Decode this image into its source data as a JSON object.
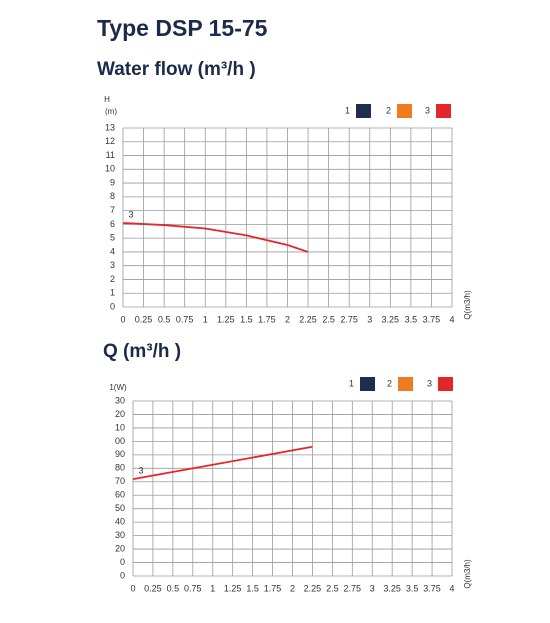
{
  "header": {
    "title": "Type DSP 15-75"
  },
  "chart_data": [
    {
      "type": "line",
      "title": "Water flow (m³/h )",
      "y_label": "H",
      "y_unit": "(m)",
      "x_label": "Q(m3/h)",
      "xlim": [
        0,
        4
      ],
      "xticks": [
        0,
        0.25,
        0.5,
        0.75,
        1,
        1.25,
        1.5,
        1.75,
        2,
        2.25,
        2.5,
        2.75,
        3,
        3.25,
        3.5,
        3.75,
        4
      ],
      "ylim": [
        0,
        13
      ],
      "yticks": [
        0,
        1,
        2,
        3,
        4,
        5,
        6,
        7,
        8,
        9,
        10,
        11,
        12,
        13
      ],
      "grid": true,
      "series": [
        {
          "name": "1",
          "color": "#1f2d4f"
        },
        {
          "name": "2",
          "color": "#f07c22"
        },
        {
          "name": "3",
          "color": "#e3262b",
          "x": [
            0,
            0.5,
            1,
            1.5,
            2,
            2.25
          ],
          "values": [
            6.1,
            5.95,
            5.7,
            5.2,
            4.5,
            4.0
          ]
        }
      ]
    },
    {
      "type": "line",
      "title": "Q (m³/h )",
      "y_label": "1(W)",
      "x_label": "Q(m3/h)",
      "xlim": [
        0,
        4
      ],
      "xticks": [
        0,
        0.25,
        0.5,
        0.75,
        1,
        1.25,
        1.5,
        1.75,
        2,
        2.25,
        2.5,
        2.75,
        3,
        3.25,
        3.5,
        3.75,
        4
      ],
      "ylim": [
        0,
        130
      ],
      "yticks": [
        0,
        {
          "value": 10,
          "label": "0"
        },
        20,
        30,
        40,
        50,
        60,
        70,
        80,
        90,
        {
          "value": 100,
          "label": "00"
        },
        {
          "value": 110,
          "label": "10"
        },
        {
          "value": 120,
          "label": "20"
        },
        {
          "value": 130,
          "label": "30"
        }
      ],
      "grid": true,
      "series": [
        {
          "name": "1",
          "color": "#1f2d4f"
        },
        {
          "name": "2",
          "color": "#f07c22"
        },
        {
          "name": "3",
          "color": "#e3262b",
          "x": [
            0,
            2.25
          ],
          "values": [
            72,
            96
          ]
        }
      ]
    }
  ]
}
